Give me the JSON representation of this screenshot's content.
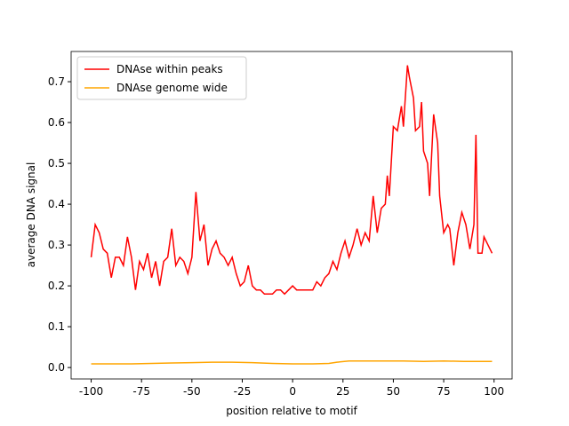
{
  "chart_data": {
    "type": "line",
    "xlabel": "position relative to motif",
    "ylabel": "average DNA signal",
    "xlim": [
      -109.95,
      108.95
    ],
    "ylim": [
      -0.028,
      0.774
    ],
    "xticks": [
      -100,
      -75,
      -50,
      -25,
      0,
      25,
      50,
      75,
      100
    ],
    "yticks": [
      {
        "value": 0,
        "label": "0.0"
      },
      {
        "value": 0.1,
        "label": "0.1"
      },
      {
        "value": 0.2,
        "label": "0.2"
      },
      {
        "value": 0.3,
        "label": "0.3"
      },
      {
        "value": 0.4,
        "label": "0.4"
      },
      {
        "value": 0.5,
        "label": "0.5"
      },
      {
        "value": 0.6,
        "label": "0.6"
      },
      {
        "value": 0.7,
        "label": "0.7"
      }
    ],
    "legend": "upper left",
    "series": [
      {
        "name": "DNAse within peaks",
        "color": "#ff0000",
        "x": [
          -100,
          -98,
          -96,
          -94,
          -92,
          -90,
          -88,
          -86,
          -84,
          -82,
          -80,
          -78,
          -76,
          -74,
          -72,
          -70,
          -68,
          -66,
          -64,
          -62,
          -60,
          -58,
          -56,
          -54,
          -52,
          -50,
          -48,
          -46,
          -44,
          -42,
          -40,
          -38,
          -36,
          -34,
          -32,
          -30,
          -28,
          -26,
          -24,
          -22,
          -20,
          -18,
          -16,
          -14,
          -12,
          -10,
          -8,
          -6,
          -4,
          -2,
          0,
          2,
          4,
          6,
          8,
          10,
          12,
          14,
          16,
          18,
          20,
          22,
          24,
          26,
          28,
          30,
          32,
          34,
          36,
          38,
          40,
          42,
          44,
          46,
          47,
          48,
          50,
          52,
          54,
          55,
          57,
          58,
          60,
          61,
          63,
          64,
          65,
          67,
          68,
          70,
          72,
          73,
          75,
          77,
          78,
          80,
          82,
          84,
          86,
          88,
          90,
          91,
          92,
          94,
          95,
          97,
          99
        ],
        "values": [
          0.27,
          0.35,
          0.33,
          0.29,
          0.28,
          0.22,
          0.27,
          0.27,
          0.25,
          0.32,
          0.27,
          0.19,
          0.26,
          0.24,
          0.28,
          0.22,
          0.26,
          0.2,
          0.26,
          0.27,
          0.34,
          0.25,
          0.27,
          0.26,
          0.23,
          0.27,
          0.43,
          0.31,
          0.35,
          0.25,
          0.29,
          0.31,
          0.28,
          0.27,
          0.25,
          0.27,
          0.23,
          0.2,
          0.21,
          0.25,
          0.2,
          0.19,
          0.19,
          0.18,
          0.18,
          0.18,
          0.19,
          0.19,
          0.18,
          0.19,
          0.2,
          0.19,
          0.19,
          0.19,
          0.19,
          0.19,
          0.21,
          0.2,
          0.22,
          0.23,
          0.26,
          0.24,
          0.28,
          0.31,
          0.27,
          0.3,
          0.34,
          0.3,
          0.33,
          0.31,
          0.42,
          0.33,
          0.39,
          0.4,
          0.47,
          0.42,
          0.59,
          0.58,
          0.64,
          0.59,
          0.74,
          0.71,
          0.66,
          0.58,
          0.59,
          0.65,
          0.53,
          0.5,
          0.42,
          0.62,
          0.55,
          0.42,
          0.33,
          0.35,
          0.34,
          0.25,
          0.33,
          0.38,
          0.35,
          0.29,
          0.35,
          0.57,
          0.28,
          0.28,
          0.32,
          0.3,
          0.28
        ]
      },
      {
        "name": "DNAse genome wide",
        "color": "#ffa500",
        "x": [
          -100,
          -90,
          -80,
          -70,
          -60,
          -50,
          -40,
          -30,
          -20,
          -10,
          0,
          10,
          18,
          22,
          28,
          35,
          45,
          55,
          65,
          75,
          85,
          99
        ],
        "values": [
          0.009,
          0.009,
          0.009,
          0.01,
          0.011,
          0.012,
          0.013,
          0.013,
          0.012,
          0.01,
          0.009,
          0.009,
          0.01,
          0.013,
          0.016,
          0.016,
          0.016,
          0.016,
          0.015,
          0.016,
          0.015,
          0.015
        ]
      }
    ]
  }
}
